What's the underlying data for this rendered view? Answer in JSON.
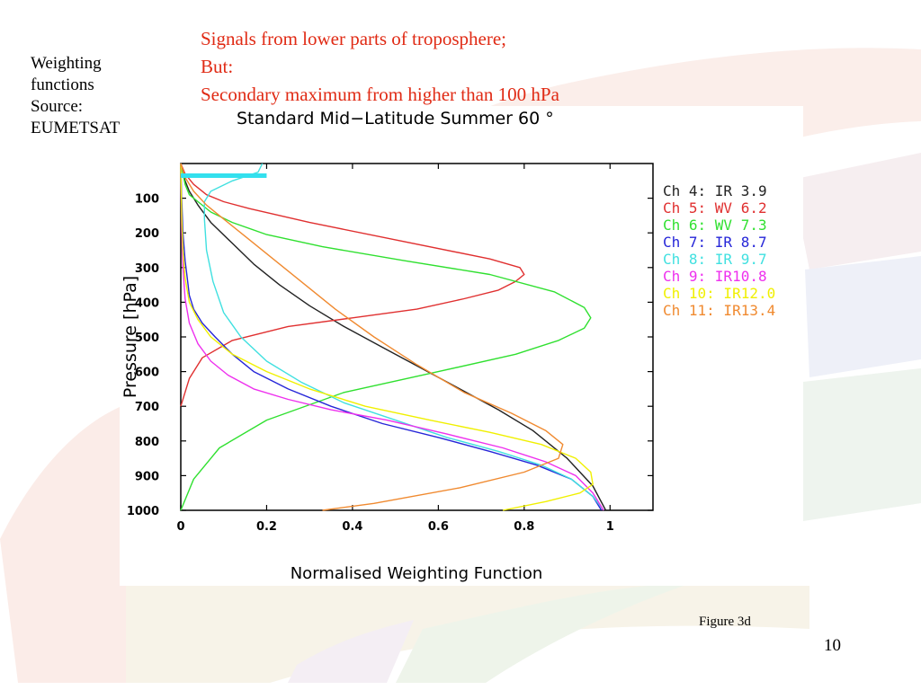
{
  "slide": {
    "side_note": [
      "Weighting",
      "functions",
      "Source:",
      "EUMETSAT"
    ],
    "headline": [
      "Signals from lower parts of troposphere;",
      "But:",
      "Secondary maximum from higher than 100 hPa"
    ],
    "headline_color": "#e02a14",
    "figure_caption": "Figure 3d",
    "page_number": "10",
    "callout_arrow_color": "#64e6e6",
    "callout_arrow_target": "Ch 8: IR 9.7",
    "highlight_bar_color": "#33e0ee",
    "highlight_bar_pressure_hPa": 35,
    "highlight_bar_x_range": [
      0,
      0.2
    ]
  },
  "chart_data": {
    "type": "line",
    "title": "Standard Mid−Latitude Summer 60 °",
    "xlabel": "Normalised Weighting Function",
    "ylabel": "Pressure [hPa]",
    "xlim": [
      0,
      1.1
    ],
    "ylim": [
      1000,
      0
    ],
    "x_ticks": [
      0,
      0.2,
      0.4,
      0.6,
      0.8,
      1
    ],
    "x_tick_labels": [
      "0",
      "0.2",
      "0.4",
      "0.6",
      "0.8",
      "1"
    ],
    "y_ticks": [
      100,
      200,
      300,
      400,
      500,
      600,
      700,
      800,
      900,
      1000
    ],
    "y_tick_labels": [
      "100",
      "200",
      "300",
      "400",
      "500",
      "600",
      "700",
      "800",
      "900",
      "1000"
    ],
    "grid": false,
    "legend_position": "right",
    "series": [
      {
        "name": "Ch   4: IR  3.9",
        "color": "#222222",
        "x": [
          0.0,
          0.005,
          0.01,
          0.02,
          0.04,
          0.07,
          0.12,
          0.17,
          0.23,
          0.3,
          0.38,
          0.47,
          0.56,
          0.65,
          0.74,
          0.82,
          0.9,
          0.96,
          0.99
        ],
        "y": [
          0,
          25,
          50,
          80,
          120,
          170,
          230,
          290,
          350,
          410,
          470,
          530,
          590,
          650,
          710,
          770,
          850,
          930,
          1000
        ]
      },
      {
        "name": "Ch   5:  WV  6.2",
        "color": "#e03030",
        "x": [
          0.0,
          0.01,
          0.03,
          0.06,
          0.1,
          0.16,
          0.3,
          0.5,
          0.72,
          0.79,
          0.8,
          0.78,
          0.74,
          0.66,
          0.55,
          0.4,
          0.25,
          0.12,
          0.05,
          0.02,
          0.0
        ],
        "y": [
          0,
          30,
          60,
          90,
          110,
          130,
          170,
          220,
          275,
          300,
          320,
          340,
          365,
          390,
          420,
          445,
          470,
          510,
          560,
          620,
          700
        ]
      },
      {
        "name": "Ch   6:  WV  7.3",
        "color": "#30e030",
        "x": [
          0.0,
          0.005,
          0.01,
          0.02,
          0.04,
          0.07,
          0.12,
          0.2,
          0.33,
          0.52,
          0.72,
          0.87,
          0.94,
          0.955,
          0.94,
          0.88,
          0.78,
          0.6,
          0.38,
          0.2,
          0.09,
          0.03,
          0.0
        ],
        "y": [
          0,
          30,
          60,
          90,
          110,
          140,
          170,
          205,
          240,
          280,
          320,
          370,
          415,
          445,
          475,
          510,
          550,
          600,
          660,
          740,
          820,
          910,
          1000
        ]
      },
      {
        "name": "Ch   7:  IR  8.7",
        "color": "#2626d8",
        "x": [
          0.0,
          0.002,
          0.005,
          0.01,
          0.015,
          0.02,
          0.03,
          0.05,
          0.08,
          0.12,
          0.17,
          0.25,
          0.35,
          0.47,
          0.6,
          0.72,
          0.83,
          0.91,
          0.96,
          0.98
        ],
        "y": [
          0,
          100,
          200,
          280,
          330,
          380,
          420,
          460,
          500,
          550,
          600,
          650,
          700,
          750,
          790,
          830,
          870,
          910,
          960,
          1000
        ]
      },
      {
        "name": "Ch   8:  IR  9.7",
        "color": "#40e0e0",
        "x": [
          0.19,
          0.18,
          0.12,
          0.07,
          0.055,
          0.055,
          0.06,
          0.075,
          0.1,
          0.14,
          0.2,
          0.28,
          0.38,
          0.5,
          0.62,
          0.74,
          0.84,
          0.91,
          0.96,
          0.985
        ],
        "y": [
          0,
          25,
          50,
          80,
          110,
          160,
          250,
          340,
          430,
          500,
          570,
          630,
          690,
          740,
          790,
          830,
          870,
          910,
          960,
          1000
        ]
      },
      {
        "name": "Ch   9:  IR10.8",
        "color": "#ee30ee",
        "x": [
          0.0,
          0.002,
          0.005,
          0.01,
          0.02,
          0.04,
          0.07,
          0.11,
          0.17,
          0.25,
          0.35,
          0.48,
          0.62,
          0.75,
          0.85,
          0.92,
          0.96,
          0.985
        ],
        "y": [
          0,
          200,
          300,
          390,
          460,
          520,
          570,
          610,
          650,
          680,
          710,
          740,
          780,
          820,
          860,
          900,
          950,
          1000
        ]
      },
      {
        "name": "Ch  10:  IR12.0",
        "color": "#f0f000",
        "x": [
          0.0,
          0.002,
          0.005,
          0.01,
          0.02,
          0.04,
          0.07,
          0.12,
          0.2,
          0.3,
          0.43,
          0.58,
          0.72,
          0.84,
          0.92,
          0.955,
          0.96,
          0.93,
          0.85,
          0.75
        ],
        "y": [
          0,
          150,
          250,
          330,
          400,
          450,
          500,
          550,
          600,
          650,
          700,
          740,
          775,
          810,
          850,
          890,
          925,
          950,
          975,
          1000
        ]
      },
      {
        "name": "Ch  11:  IR13.4",
        "color": "#f08a30",
        "x": [
          0.0,
          0.01,
          0.03,
          0.06,
          0.1,
          0.15,
          0.21,
          0.28,
          0.36,
          0.45,
          0.55,
          0.66,
          0.77,
          0.85,
          0.89,
          0.88,
          0.8,
          0.65,
          0.45,
          0.33
        ],
        "y": [
          0,
          40,
          80,
          120,
          160,
          210,
          270,
          340,
          420,
          500,
          580,
          660,
          720,
          770,
          810,
          850,
          890,
          935,
          980,
          1000
        ]
      }
    ]
  }
}
